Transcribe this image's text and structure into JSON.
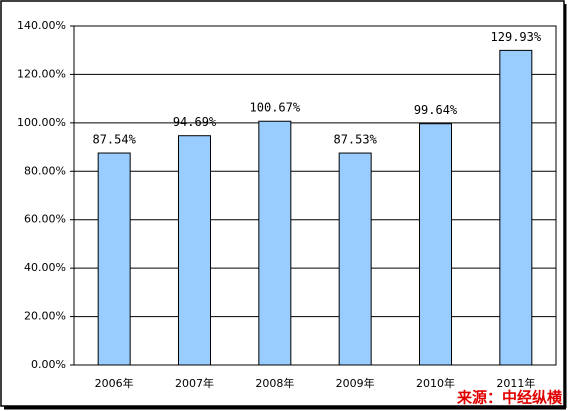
{
  "chart_data": {
    "type": "bar",
    "categories": [
      "2006年",
      "2007年",
      "2008年",
      "2009年",
      "2010年",
      "2011年"
    ],
    "values": [
      87.54,
      94.69,
      100.67,
      87.53,
      99.64,
      129.93
    ],
    "value_labels": [
      "87.54%",
      "94.69%",
      "100.67%",
      "87.53%",
      "99.64%",
      "129.93%"
    ],
    "color": "#99ccff",
    "ylim": [
      0,
      140
    ],
    "yticks": [
      {
        "value": 0,
        "label": "0.00%"
      },
      {
        "value": 20,
        "label": "20.00%"
      },
      {
        "value": 40,
        "label": "40.00%"
      },
      {
        "value": 60,
        "label": "60.00%"
      },
      {
        "value": 80,
        "label": "80.00%"
      },
      {
        "value": 100,
        "label": "100.00%"
      },
      {
        "value": 120,
        "label": "120.00%"
      },
      {
        "value": 140,
        "label": "140.00%"
      }
    ],
    "grid": true,
    "source": "来源：中经纵横"
  }
}
